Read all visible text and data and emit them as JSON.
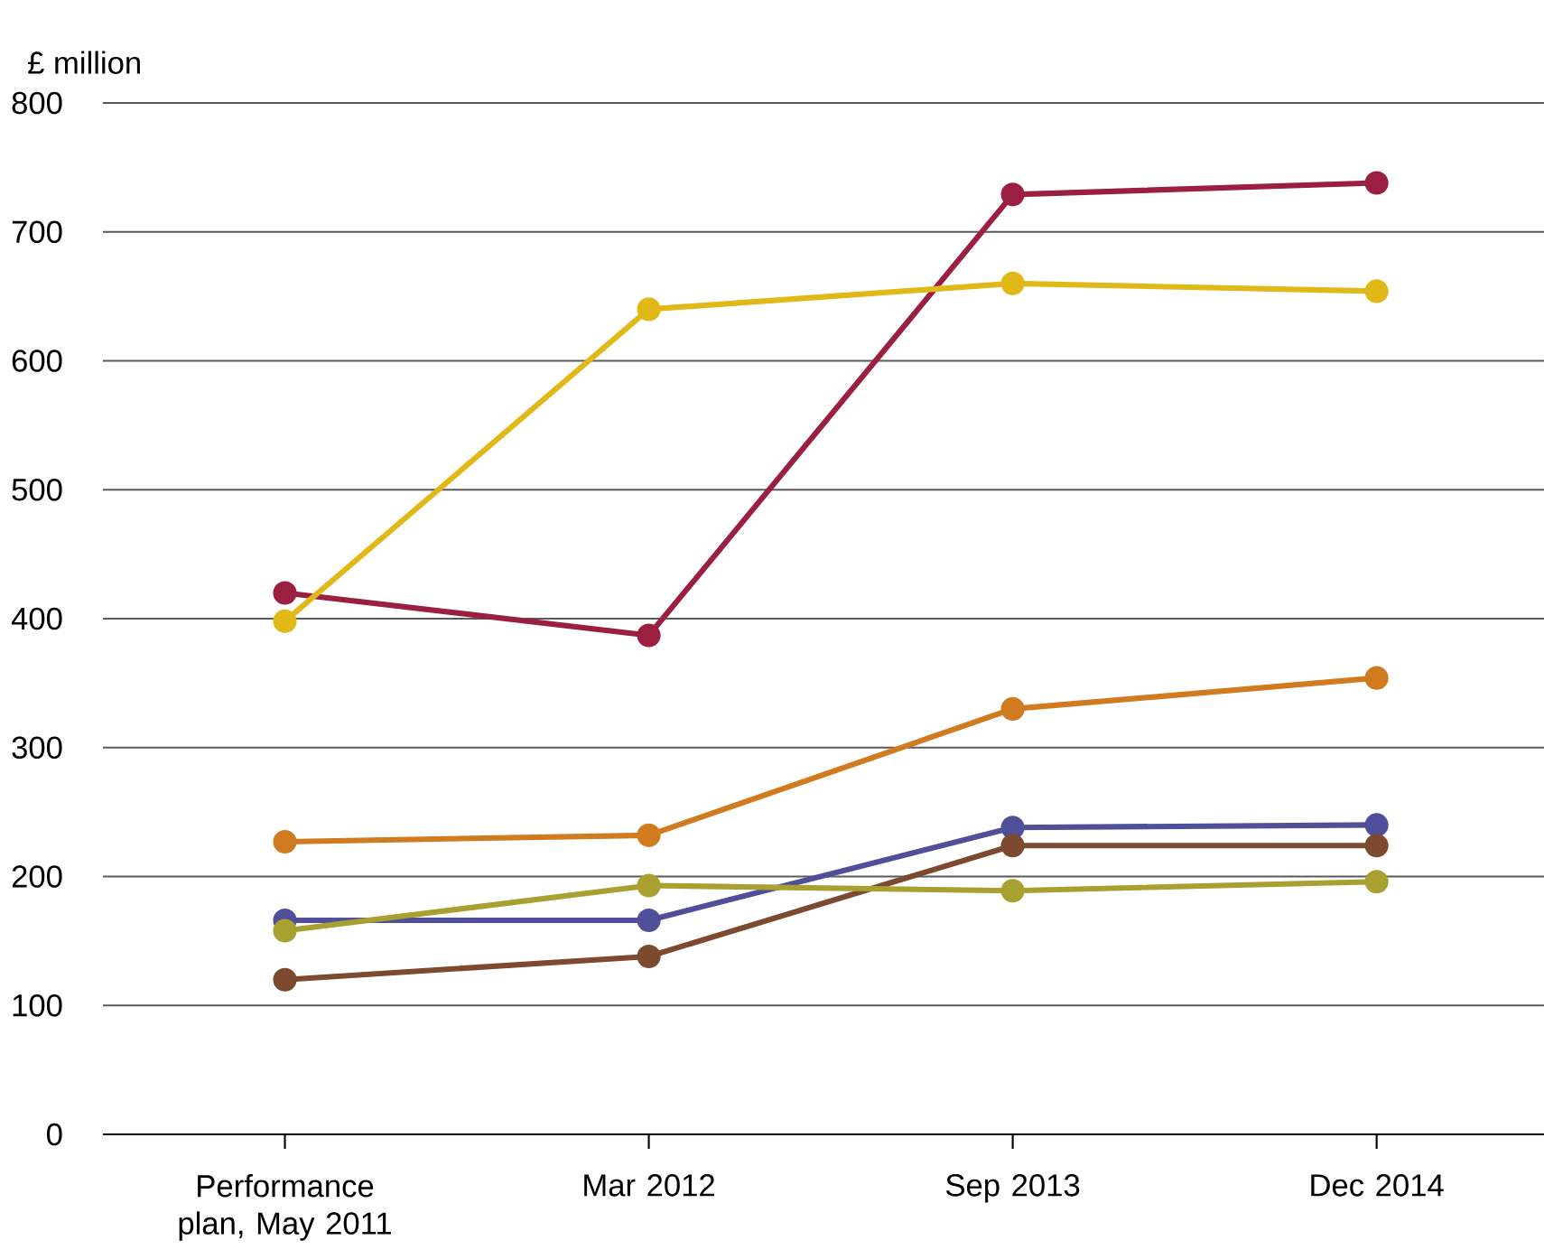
{
  "chart_data": {
    "type": "line",
    "ylabel": "£ million",
    "categories": [
      "Performance plan, May 2011",
      "Mar 2012",
      "Sep 2013",
      "Dec 2014"
    ],
    "series": [
      {
        "color": "#9b1f40",
        "values": [
          420,
          387,
          729,
          738
        ]
      },
      {
        "color": "#e0b918",
        "values": [
          398,
          640,
          660,
          654
        ]
      },
      {
        "color": "#d07b20",
        "values": [
          227,
          232,
          330,
          354
        ]
      },
      {
        "color": "#4f4f9a",
        "values": [
          166,
          166,
          238,
          240
        ]
      },
      {
        "color": "#7d4a30",
        "values": [
          120,
          138,
          224,
          224
        ]
      },
      {
        "color": "#a8a030",
        "values": [
          158,
          193,
          189,
          196
        ]
      }
    ],
    "ylim": [
      0,
      800
    ],
    "yticks": [
      0,
      100,
      200,
      300,
      400,
      500,
      600,
      700,
      800
    ],
    "grid": "y",
    "marker": "circle",
    "line_style": "solid"
  }
}
